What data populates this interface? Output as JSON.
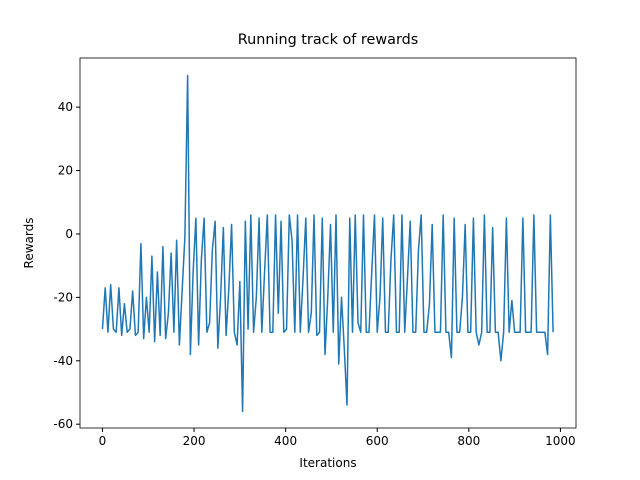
{
  "chart_data": {
    "type": "line",
    "title": "Running track of rewards",
    "x_label": "Iterations",
    "y_label": "Rewards",
    "color": "#1f77b4",
    "xlim": [
      -49,
      1034
    ],
    "ylim": [
      -61.2,
      55.5
    ],
    "xticks": [
      0,
      200,
      400,
      600,
      800,
      1000
    ],
    "yticks": [
      -60,
      -40,
      -20,
      0,
      20,
      40
    ],
    "x": [
      0,
      6,
      12,
      18,
      24,
      30,
      36,
      42,
      48,
      54,
      60,
      66,
      72,
      78,
      84,
      90,
      96,
      102,
      108,
      114,
      120,
      126,
      132,
      138,
      144,
      150,
      156,
      162,
      168,
      174,
      180,
      186,
      192,
      198,
      204,
      210,
      216,
      222,
      228,
      234,
      240,
      246,
      252,
      258,
      264,
      270,
      276,
      282,
      288,
      294,
      300,
      306,
      312,
      318,
      324,
      330,
      336,
      342,
      348,
      354,
      360,
      366,
      372,
      378,
      384,
      390,
      396,
      402,
      408,
      414,
      420,
      426,
      432,
      438,
      444,
      450,
      456,
      462,
      468,
      474,
      480,
      486,
      492,
      498,
      504,
      510,
      516,
      522,
      528,
      534,
      540,
      546,
      552,
      558,
      564,
      570,
      576,
      582,
      588,
      594,
      600,
      606,
      612,
      618,
      624,
      630,
      636,
      642,
      648,
      654,
      660,
      666,
      672,
      678,
      684,
      690,
      696,
      702,
      708,
      714,
      720,
      726,
      732,
      738,
      744,
      750,
      756,
      762,
      768,
      774,
      780,
      786,
      792,
      798,
      804,
      810,
      816,
      822,
      828,
      834,
      840,
      846,
      852,
      858,
      864,
      870,
      876,
      882,
      888,
      894,
      900,
      906,
      912,
      918,
      924,
      930,
      936,
      942,
      948,
      954,
      960,
      966,
      972,
      978,
      984
    ],
    "values": [
      -30,
      -17,
      -31,
      -16,
      -30,
      -31,
      -17,
      -32,
      -22,
      -31,
      -30,
      -18,
      -32,
      -31,
      -3,
      -33,
      -20,
      -31,
      -7,
      -34,
      -12,
      -32,
      -4,
      -33,
      -25,
      -6,
      -31,
      -2,
      -35,
      -18,
      -1,
      50,
      -38,
      -12,
      5,
      -35,
      -8,
      5,
      -31,
      -28,
      -5,
      4,
      -36,
      -20,
      2,
      -32,
      -17,
      3,
      -31,
      -35,
      -15,
      -56,
      4,
      -30,
      6,
      -31,
      -20,
      5,
      -31,
      -12,
      6,
      -31,
      -31,
      6,
      -25,
      4,
      -31,
      -30,
      6,
      -2,
      -31,
      6,
      -31,
      -14,
      5,
      -31,
      -25,
      6,
      -32,
      -31,
      5,
      -38,
      -20,
      3,
      -31,
      6,
      -41,
      -20,
      -36,
      -54,
      5,
      -31,
      6,
      -28,
      -31,
      6,
      -31,
      -31,
      -12,
      6,
      -31,
      -20,
      5,
      -31,
      -31,
      -8,
      6,
      -31,
      -31,
      6,
      -31,
      -14,
      4,
      -31,
      -31,
      -5,
      6,
      -31,
      -31,
      -22,
      3,
      -31,
      -31,
      -31,
      6,
      -31,
      -31,
      -39,
      5,
      -31,
      -31,
      -20,
      3,
      -31,
      -31,
      5,
      -31,
      -35,
      -31,
      6,
      -31,
      -31,
      2,
      -31,
      -31,
      -40,
      -31,
      5,
      -31,
      -21,
      -31,
      -31,
      -31,
      5,
      -31,
      -31,
      -31,
      6,
      -31,
      -31,
      -31,
      -31,
      -38,
      6,
      -31
    ]
  }
}
